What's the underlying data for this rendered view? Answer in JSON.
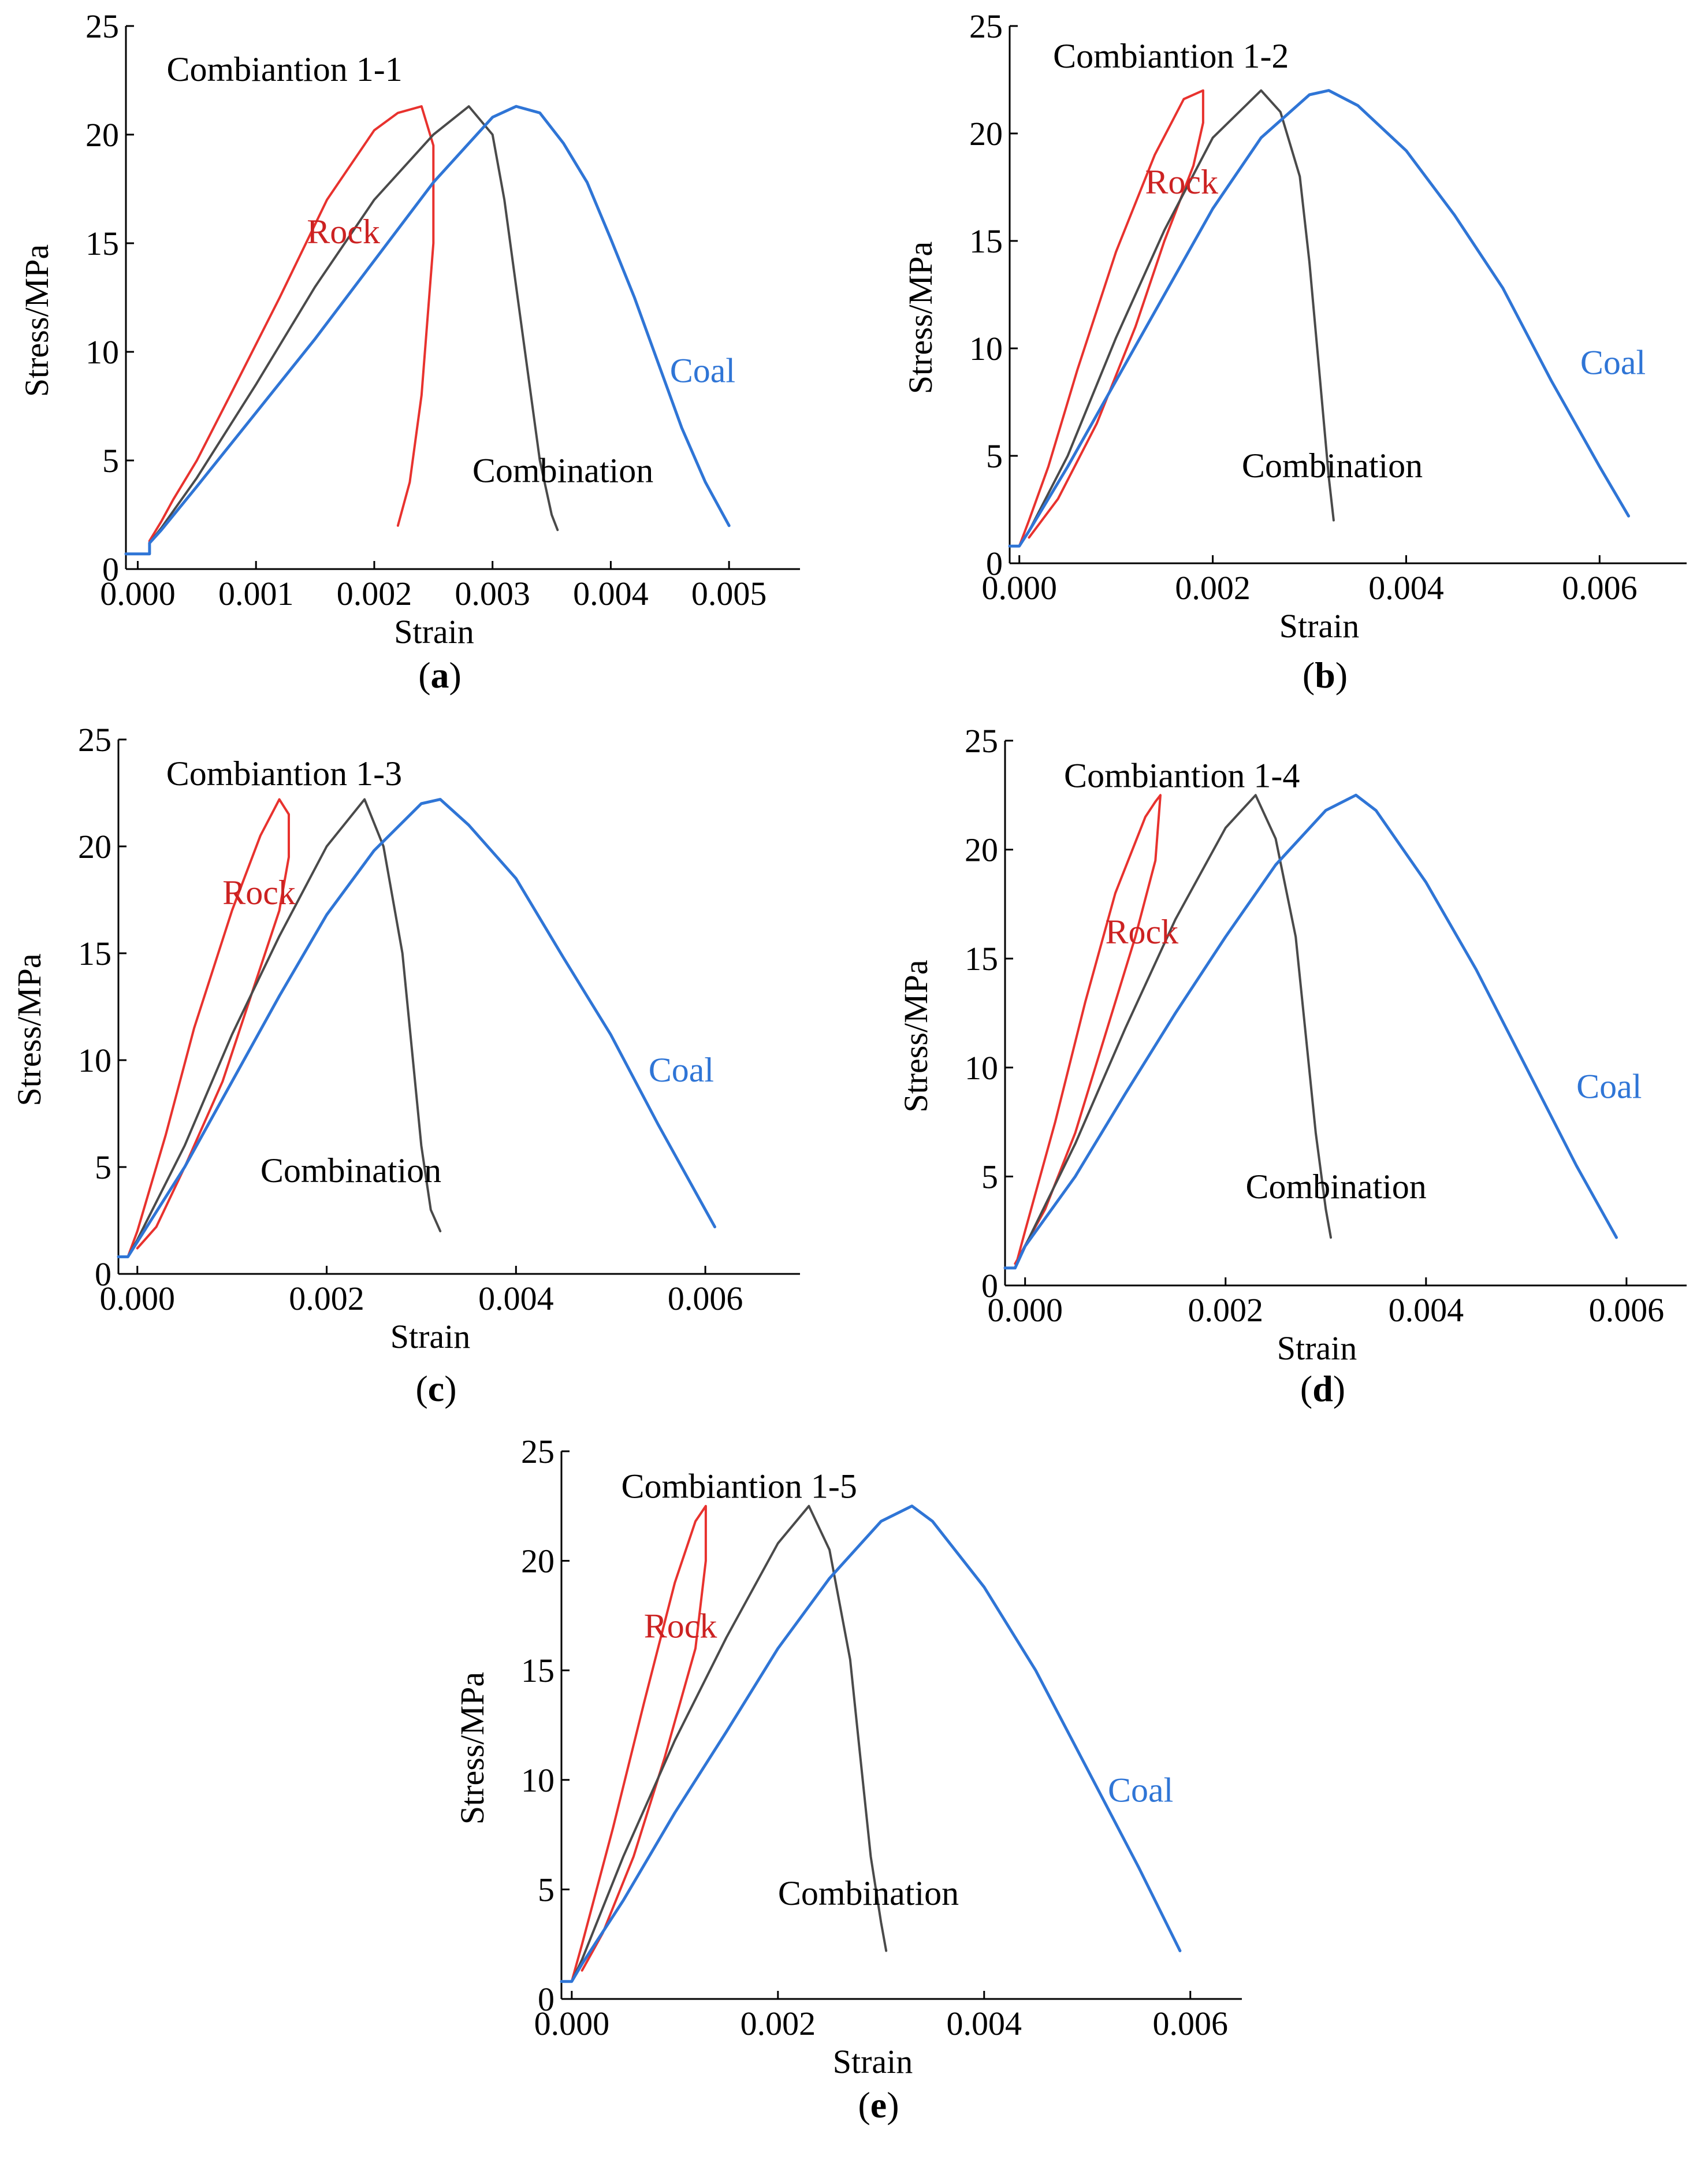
{
  "chart_data": [
    {
      "panel": "(a)",
      "panel_letter": "a",
      "type": "line",
      "title": "Combiantion 1-1",
      "xlabel": "Strain",
      "ylabel": "Stress/MPa",
      "xlim": [
        -0.0001,
        0.0056
      ],
      "ylim": [
        0,
        25
      ],
      "xticks": [
        0.0,
        0.001,
        0.002,
        0.003,
        0.004,
        0.005
      ],
      "xtick_labels": [
        "0.000",
        "0.001",
        "0.002",
        "0.003",
        "0.004",
        "0.005"
      ],
      "yticks": [
        0,
        5,
        10,
        15,
        20,
        25
      ],
      "ytick_labels": [
        "0",
        "5",
        "10",
        "15",
        "20",
        "25"
      ],
      "grid": false,
      "series": [
        {
          "name": "Rock",
          "color": "#e8322e",
          "stroke_width": 4,
          "x": [
            -0.0001,
            0.0001,
            0.0001,
            0.0002,
            0.0003,
            0.0005,
            0.0008,
            0.0012,
            0.0016,
            0.002,
            0.0022,
            0.0024,
            0.0025,
            0.0025,
            0.0024,
            0.0023,
            0.0022
          ],
          "y": [
            0.7,
            0.7,
            1.3,
            2.2,
            3.2,
            5.0,
            8.2,
            12.5,
            17.0,
            20.2,
            21.0,
            21.3,
            19.5,
            15.0,
            8.0,
            4.0,
            2.0
          ]
        },
        {
          "name": "Combination",
          "color": "#4a4a4a",
          "stroke_width": 4,
          "x": [
            -0.0001,
            0.0001,
            0.0001,
            0.0002,
            0.0005,
            0.001,
            0.0015,
            0.002,
            0.0025,
            0.0028,
            0.003,
            0.0031,
            0.0032,
            0.0033,
            0.0034,
            0.0035,
            0.00355
          ],
          "y": [
            0.7,
            0.7,
            1.2,
            1.9,
            4.2,
            8.5,
            13.0,
            17.0,
            20.0,
            21.3,
            20.0,
            17.0,
            13.0,
            9.0,
            5.0,
            2.5,
            1.8
          ]
        },
        {
          "name": "Coal",
          "color": "#2f75d6",
          "stroke_width": 5,
          "x": [
            -0.0001,
            0.0001,
            0.0001,
            0.0002,
            0.0005,
            0.001,
            0.0015,
            0.002,
            0.0025,
            0.003,
            0.0032,
            0.0034,
            0.0036,
            0.0038,
            0.004,
            0.0042,
            0.0044,
            0.0046,
            0.0048,
            0.005
          ],
          "y": [
            0.7,
            0.7,
            1.2,
            1.8,
            3.8,
            7.2,
            10.6,
            14.2,
            17.8,
            20.8,
            21.3,
            21.0,
            19.6,
            17.8,
            15.2,
            12.5,
            9.5,
            6.5,
            4.0,
            2.0
          ]
        }
      ]
    },
    {
      "panel": "(b)",
      "panel_letter": "b",
      "type": "line",
      "title": "Combiantion 1-2",
      "xlabel": "Strain",
      "ylabel": "Stress/MPa",
      "xlim": [
        -0.0001,
        0.0069
      ],
      "ylim": [
        0,
        25
      ],
      "xticks": [
        0.0,
        0.002,
        0.004,
        0.006
      ],
      "xtick_labels": [
        "0.000",
        "0.002",
        "0.004",
        "0.006"
      ],
      "yticks": [
        0,
        5,
        10,
        15,
        20,
        25
      ],
      "ytick_labels": [
        "0",
        "5",
        "10",
        "15",
        "20",
        "25"
      ],
      "grid": false,
      "series": [
        {
          "name": "Rock",
          "color": "#e8322e",
          "stroke_width": 4,
          "x": [
            -0.0001,
            0.0,
            0.0001,
            0.0003,
            0.0006,
            0.001,
            0.0014,
            0.0017,
            0.0019,
            0.0019,
            0.0018,
            0.0015,
            0.0012,
            0.0008,
            0.0004,
            0.0001
          ],
          "y": [
            0.8,
            0.8,
            2.0,
            4.5,
            9.0,
            14.5,
            19.0,
            21.6,
            22.0,
            20.5,
            18.5,
            15.0,
            11.0,
            6.5,
            3.0,
            1.2
          ]
        },
        {
          "name": "Combination",
          "color": "#4a4a4a",
          "stroke_width": 4,
          "x": [
            -0.0001,
            0.0,
            0.0001,
            0.0005,
            0.001,
            0.0015,
            0.002,
            0.0025,
            0.0027,
            0.0029,
            0.003,
            0.0031,
            0.0032,
            0.00325
          ],
          "y": [
            0.8,
            0.8,
            1.5,
            5.0,
            10.5,
            15.5,
            19.8,
            22.0,
            21.0,
            18.0,
            14.0,
            9.0,
            4.0,
            2.0
          ]
        },
        {
          "name": "Coal",
          "color": "#2f75d6",
          "stroke_width": 5,
          "x": [
            -0.0001,
            0.0,
            0.0001,
            0.0005,
            0.001,
            0.0015,
            0.002,
            0.0025,
            0.003,
            0.0032,
            0.0035,
            0.004,
            0.0045,
            0.005,
            0.0055,
            0.006,
            0.0063
          ],
          "y": [
            0.8,
            0.8,
            1.5,
            4.5,
            8.5,
            12.5,
            16.5,
            19.8,
            21.8,
            22.0,
            21.3,
            19.2,
            16.2,
            12.8,
            8.5,
            4.5,
            2.2
          ]
        }
      ]
    },
    {
      "panel": "(c)",
      "panel_letter": "c",
      "type": "line",
      "title": "Combiantion 1-3",
      "xlabel": "Strain",
      "ylabel": "Stress/MPa",
      "xlim": [
        -0.0002,
        0.007
      ],
      "ylim": [
        0,
        25
      ],
      "xticks": [
        0.0,
        0.002,
        0.004,
        0.006
      ],
      "xtick_labels": [
        "0.000",
        "0.002",
        "0.004",
        "0.006"
      ],
      "yticks": [
        0,
        5,
        10,
        15,
        20,
        25
      ],
      "ytick_labels": [
        "0",
        "5",
        "10",
        "15",
        "20",
        "25"
      ],
      "grid": false,
      "series": [
        {
          "name": "Rock",
          "color": "#e8322e",
          "stroke_width": 4,
          "x": [
            -0.0002,
            -0.0001,
            0.0,
            0.0003,
            0.0006,
            0.001,
            0.0013,
            0.0015,
            0.0016,
            0.0016,
            0.0015,
            0.0012,
            0.0009,
            0.0005,
            0.0002,
            0.0
          ],
          "y": [
            0.8,
            0.8,
            2.0,
            6.5,
            11.5,
            17.0,
            20.5,
            22.2,
            21.5,
            19.5,
            17.0,
            13.0,
            9.0,
            5.0,
            2.2,
            1.2
          ]
        },
        {
          "name": "Combination",
          "color": "#4a4a4a",
          "stroke_width": 4,
          "x": [
            -0.0002,
            -0.0001,
            0.0,
            0.0005,
            0.001,
            0.0015,
            0.002,
            0.0024,
            0.0026,
            0.0028,
            0.0029,
            0.003,
            0.0031,
            0.0032
          ],
          "y": [
            0.8,
            0.8,
            1.6,
            6.0,
            11.2,
            15.8,
            20.0,
            22.2,
            20.0,
            15.0,
            10.5,
            6.0,
            3.0,
            2.0
          ]
        },
        {
          "name": "Coal",
          "color": "#2f75d6",
          "stroke_width": 5,
          "x": [
            -0.0002,
            -0.0001,
            0.0,
            0.0005,
            0.001,
            0.0015,
            0.002,
            0.0025,
            0.003,
            0.0032,
            0.0035,
            0.004,
            0.0045,
            0.005,
            0.0055,
            0.006,
            0.0061
          ],
          "y": [
            0.8,
            0.8,
            1.5,
            5.0,
            9.0,
            13.0,
            16.8,
            19.8,
            22.0,
            22.2,
            21.0,
            18.5,
            14.8,
            11.2,
            7.0,
            3.0,
            2.2
          ]
        }
      ]
    },
    {
      "panel": "(d)",
      "panel_letter": "d",
      "type": "line",
      "title": "Combiantion 1-4",
      "xlabel": "Strain",
      "ylabel": "Stress/MPa",
      "xlim": [
        -0.0002,
        0.0066
      ],
      "ylim": [
        0,
        25
      ],
      "xticks": [
        0.0,
        0.002,
        0.004,
        0.006
      ],
      "xtick_labels": [
        "0.000",
        "0.002",
        "0.004",
        "0.006"
      ],
      "yticks": [
        0,
        5,
        10,
        15,
        20,
        25
      ],
      "ytick_labels": [
        "0",
        "5",
        "10",
        "15",
        "20",
        "25"
      ],
      "grid": false,
      "series": [
        {
          "name": "Rock",
          "color": "#e8322e",
          "stroke_width": 4,
          "x": [
            -0.0002,
            -0.0001,
            0.0,
            0.0003,
            0.0006,
            0.0009,
            0.0012,
            0.0013,
            0.00135,
            0.0013,
            0.0011,
            0.0008,
            0.0005,
            0.0002,
            -0.0001
          ],
          "y": [
            0.8,
            0.8,
            2.5,
            7.5,
            13.0,
            18.0,
            21.5,
            22.2,
            22.5,
            19.5,
            16.0,
            11.5,
            7.0,
            3.5,
            1.0
          ]
        },
        {
          "name": "Combination",
          "color": "#4a4a4a",
          "stroke_width": 4,
          "x": [
            -0.0002,
            -0.0001,
            0.0,
            0.0005,
            0.001,
            0.0015,
            0.002,
            0.0023,
            0.0025,
            0.0027,
            0.0028,
            0.0029,
            0.003,
            0.00305
          ],
          "y": [
            0.8,
            0.8,
            1.8,
            6.5,
            11.8,
            16.8,
            21.0,
            22.5,
            20.5,
            16.0,
            11.5,
            7.0,
            3.5,
            2.2
          ]
        },
        {
          "name": "Coal",
          "color": "#2f75d6",
          "stroke_width": 5,
          "x": [
            -0.0002,
            -0.0001,
            0.0,
            0.0005,
            0.001,
            0.0015,
            0.002,
            0.0025,
            0.003,
            0.0033,
            0.0035,
            0.004,
            0.0045,
            0.005,
            0.0055,
            0.0059
          ],
          "y": [
            0.8,
            0.8,
            1.8,
            5.0,
            8.8,
            12.5,
            16.0,
            19.3,
            21.8,
            22.5,
            21.8,
            18.5,
            14.5,
            10.0,
            5.5,
            2.2
          ]
        }
      ]
    },
    {
      "panel": "(e)",
      "panel_letter": "e",
      "type": "line",
      "title": "Combiantion 1-5",
      "xlabel": "Strain",
      "ylabel": "Stress/MPa",
      "xlim": [
        -0.0001,
        0.0065
      ],
      "ylim": [
        0,
        25
      ],
      "xticks": [
        0.0,
        0.002,
        0.004,
        0.006
      ],
      "xtick_labels": [
        "0.000",
        "0.002",
        "0.004",
        "0.006"
      ],
      "yticks": [
        0,
        5,
        10,
        15,
        20,
        25
      ],
      "ytick_labels": [
        "0",
        "5",
        "10",
        "15",
        "20",
        "25"
      ],
      "grid": false,
      "series": [
        {
          "name": "Rock",
          "color": "#e8322e",
          "stroke_width": 4,
          "x": [
            -0.0001,
            0.0,
            0.0001,
            0.0004,
            0.0007,
            0.001,
            0.0012,
            0.0013,
            0.0013,
            0.0012,
            0.0009,
            0.0006,
            0.0003,
            0.0001
          ],
          "y": [
            0.8,
            0.8,
            2.5,
            7.8,
            13.5,
            19.0,
            21.8,
            22.5,
            20.0,
            16.0,
            11.0,
            6.5,
            3.0,
            1.3
          ]
        },
        {
          "name": "Combination",
          "color": "#4a4a4a",
          "stroke_width": 4,
          "x": [
            -0.0001,
            0.0,
            0.0001,
            0.0005,
            0.001,
            0.0015,
            0.002,
            0.0023,
            0.0025,
            0.0027,
            0.0028,
            0.0029,
            0.003,
            0.00305
          ],
          "y": [
            0.8,
            0.8,
            1.8,
            6.5,
            11.8,
            16.5,
            20.8,
            22.5,
            20.5,
            15.5,
            11.0,
            6.5,
            3.5,
            2.2
          ]
        },
        {
          "name": "Coal",
          "color": "#2f75d6",
          "stroke_width": 5,
          "x": [
            -0.0001,
            0.0,
            0.0001,
            0.0005,
            0.001,
            0.0015,
            0.002,
            0.0025,
            0.003,
            0.0033,
            0.0035,
            0.004,
            0.0045,
            0.005,
            0.0055,
            0.0059
          ],
          "y": [
            0.8,
            0.8,
            1.6,
            4.5,
            8.5,
            12.2,
            16.0,
            19.2,
            21.8,
            22.5,
            21.8,
            18.8,
            15.0,
            10.5,
            6.0,
            2.2
          ]
        }
      ]
    }
  ],
  "colors": {
    "rock": "#e8322e",
    "rock_label": "#cc2222",
    "combination": "#4a4a4a",
    "coal": "#2f75d6",
    "coal_label": "#2f75d6",
    "axis": "#000000"
  }
}
